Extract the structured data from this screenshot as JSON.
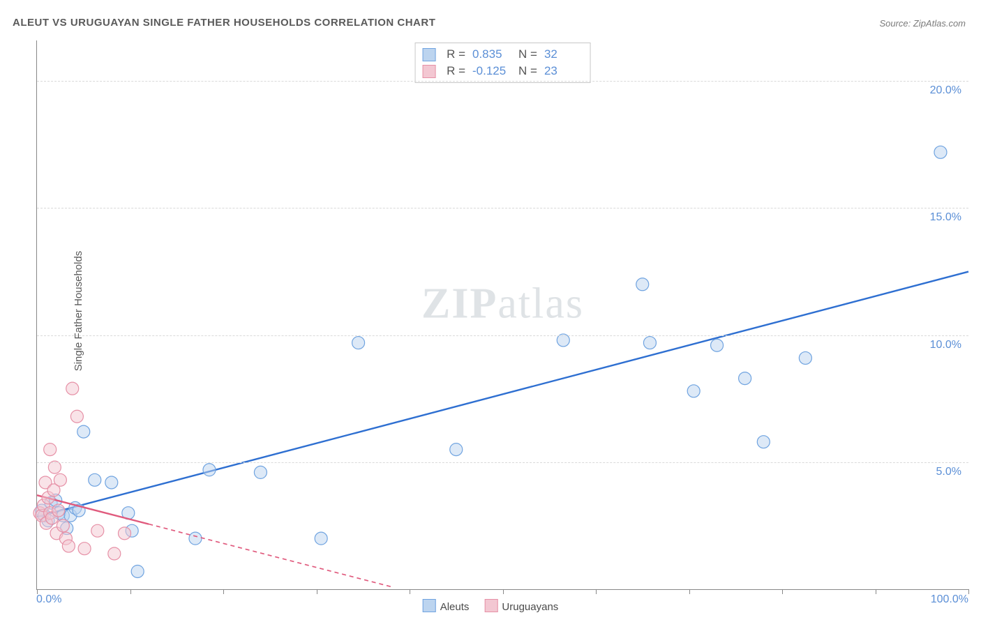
{
  "title": "ALEUT VS URUGUAYAN SINGLE FATHER HOUSEHOLDS CORRELATION CHART",
  "source_label": "Source: ZipAtlas.com",
  "ylabel": "Single Father Households",
  "watermark_bold": "ZIP",
  "watermark_rest": "atlas",
  "chart": {
    "type": "scatter",
    "xlim": [
      0,
      100
    ],
    "ylim": [
      0,
      21.6
    ],
    "x_tick_positions": [
      0,
      10,
      20,
      30,
      40,
      50,
      60,
      70,
      80,
      90,
      100
    ],
    "x_tick_labels_shown": {
      "0": "0.0%",
      "100": "100.0%"
    },
    "y_tick_positions": [
      5,
      10,
      15,
      20
    ],
    "y_tick_labels": [
      "5.0%",
      "10.0%",
      "15.0%",
      "20.0%"
    ],
    "grid_color": "#d9d9d9",
    "background_color": "#ffffff",
    "axis_color": "#888888",
    "axis_label_color": "#5b8fd6",
    "axis_label_fontsize": 16,
    "title_fontsize": 15,
    "ylabel_fontsize": 15,
    "marker_radius": 9,
    "marker_stroke_width": 1.2,
    "marker_fill_opacity": 0.25,
    "trend_line_width": 2.4,
    "trend_dash_pattern": "6,5",
    "series": [
      {
        "key": "aleuts",
        "label": "Aleuts",
        "color_stroke": "#6fa3e0",
        "color_fill": "#bcd4ef",
        "trend_color": "#2e6fd1",
        "trend": {
          "x1": 0,
          "y1": 2.85,
          "x2": 100,
          "y2": 12.5,
          "dashed_beyond_x": null
        },
        "points": [
          [
            0.5,
            3.1
          ],
          [
            0.8,
            2.9
          ],
          [
            1.2,
            2.7
          ],
          [
            1.5,
            3.4
          ],
          [
            2.0,
            3.5
          ],
          [
            2.4,
            3.0
          ],
          [
            2.8,
            2.9
          ],
          [
            3.2,
            2.4
          ],
          [
            3.6,
            2.9
          ],
          [
            4.1,
            3.2
          ],
          [
            4.5,
            3.1
          ],
          [
            5.0,
            6.2
          ],
          [
            6.2,
            4.3
          ],
          [
            8.0,
            4.2
          ],
          [
            9.8,
            3.0
          ],
          [
            10.2,
            2.3
          ],
          [
            10.8,
            0.7
          ],
          [
            17.0,
            2.0
          ],
          [
            18.5,
            4.7
          ],
          [
            24.0,
            4.6
          ],
          [
            30.5,
            2.0
          ],
          [
            34.5,
            9.7
          ],
          [
            45.0,
            5.5
          ],
          [
            56.5,
            9.8
          ],
          [
            65.0,
            12.0
          ],
          [
            65.8,
            9.7
          ],
          [
            70.5,
            7.8
          ],
          [
            73.0,
            9.6
          ],
          [
            76.0,
            8.3
          ],
          [
            78.0,
            5.8
          ],
          [
            82.5,
            9.1
          ],
          [
            97.0,
            17.2
          ]
        ]
      },
      {
        "key": "uruguayans",
        "label": "Uruguayans",
        "color_stroke": "#e690a6",
        "color_fill": "#f3c7d2",
        "trend_color": "#e05a7d",
        "trend": {
          "x1": 0,
          "y1": 3.7,
          "x2": 38,
          "y2": 0.1,
          "solid_until_x": 12
        },
        "points": [
          [
            0.3,
            3.0
          ],
          [
            0.5,
            2.9
          ],
          [
            0.7,
            3.3
          ],
          [
            0.9,
            4.2
          ],
          [
            1.0,
            2.6
          ],
          [
            1.2,
            3.6
          ],
          [
            1.4,
            5.5
          ],
          [
            1.4,
            3.0
          ],
          [
            1.6,
            2.8
          ],
          [
            1.8,
            3.9
          ],
          [
            1.9,
            4.8
          ],
          [
            2.1,
            2.2
          ],
          [
            2.3,
            3.1
          ],
          [
            2.5,
            4.3
          ],
          [
            2.8,
            2.5
          ],
          [
            3.1,
            2.0
          ],
          [
            3.4,
            1.7
          ],
          [
            3.8,
            7.9
          ],
          [
            4.3,
            6.8
          ],
          [
            5.1,
            1.6
          ],
          [
            6.5,
            2.3
          ],
          [
            8.3,
            1.4
          ],
          [
            9.4,
            2.2
          ]
        ]
      }
    ]
  },
  "correlation_box": {
    "rows": [
      {
        "swatch_stroke": "#6fa3e0",
        "swatch_fill": "#bcd4ef",
        "r_label": "R =",
        "r_value": "0.835",
        "n_label": "N =",
        "n_value": "32"
      },
      {
        "swatch_stroke": "#e690a6",
        "swatch_fill": "#f3c7d2",
        "r_label": "R =",
        "r_value": "-0.125",
        "n_label": "N =",
        "n_value": "23"
      }
    ]
  },
  "legend": {
    "items": [
      {
        "swatch_stroke": "#6fa3e0",
        "swatch_fill": "#bcd4ef",
        "label": "Aleuts"
      },
      {
        "swatch_stroke": "#e690a6",
        "swatch_fill": "#f3c7d2",
        "label": "Uruguayans"
      }
    ]
  }
}
